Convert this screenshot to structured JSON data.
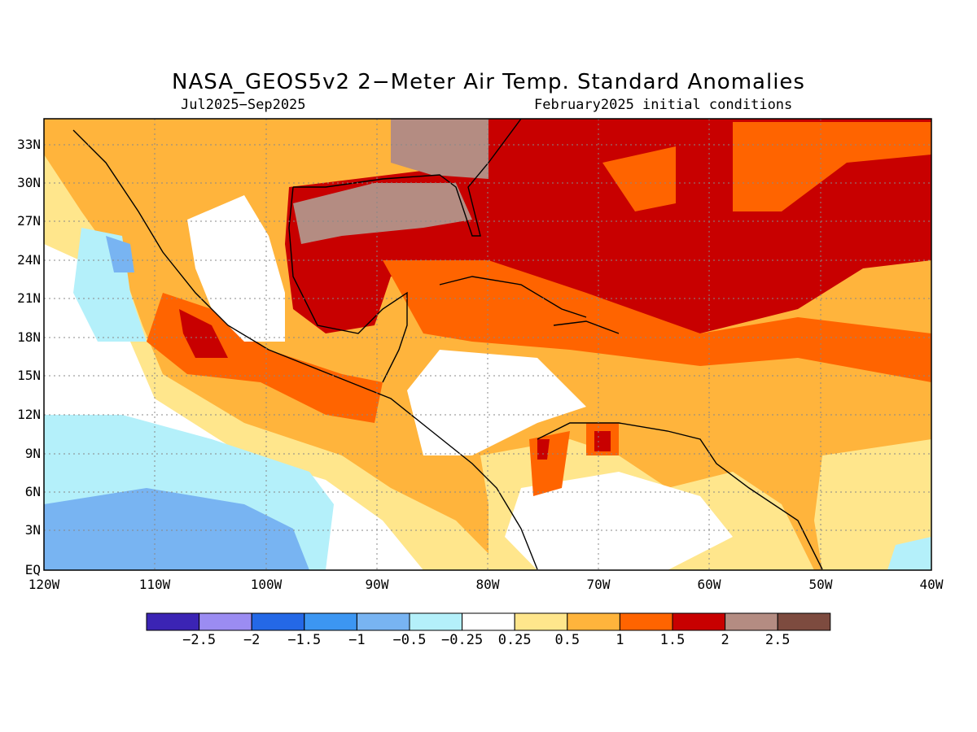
{
  "title": "NASA_GEOS5v2 2−Meter Air Temp. Standard Anomalies",
  "subtitle_left": "Jul2025−Sep2025",
  "subtitle_right": "February2025 initial conditions",
  "lat_labels": [
    "33N",
    "30N",
    "27N",
    "24N",
    "21N",
    "18N",
    "15N",
    "12N",
    "9N",
    "6N",
    "3N",
    "EQ"
  ],
  "lon_labels": [
    "120W",
    "110W",
    "100W",
    "90W",
    "80W",
    "70W",
    "60W",
    "50W",
    "40W"
  ],
  "colorbar": {
    "colors": [
      "#3b24b4",
      "#9b8cf2",
      "#2468e6",
      "#3c96f2",
      "#78b4f2",
      "#b4f0fa",
      "#ffffff",
      "#ffe68c",
      "#ffb43c",
      "#ff6400",
      "#c80000",
      "#b48c82",
      "#7d4b3f"
    ],
    "labels": [
      "−2.5",
      "−2",
      "−1.5",
      "−1",
      "−0.5",
      "−0.25",
      "0.25",
      "0.5",
      "1",
      "1.5",
      "2",
      "2.5"
    ]
  }
}
